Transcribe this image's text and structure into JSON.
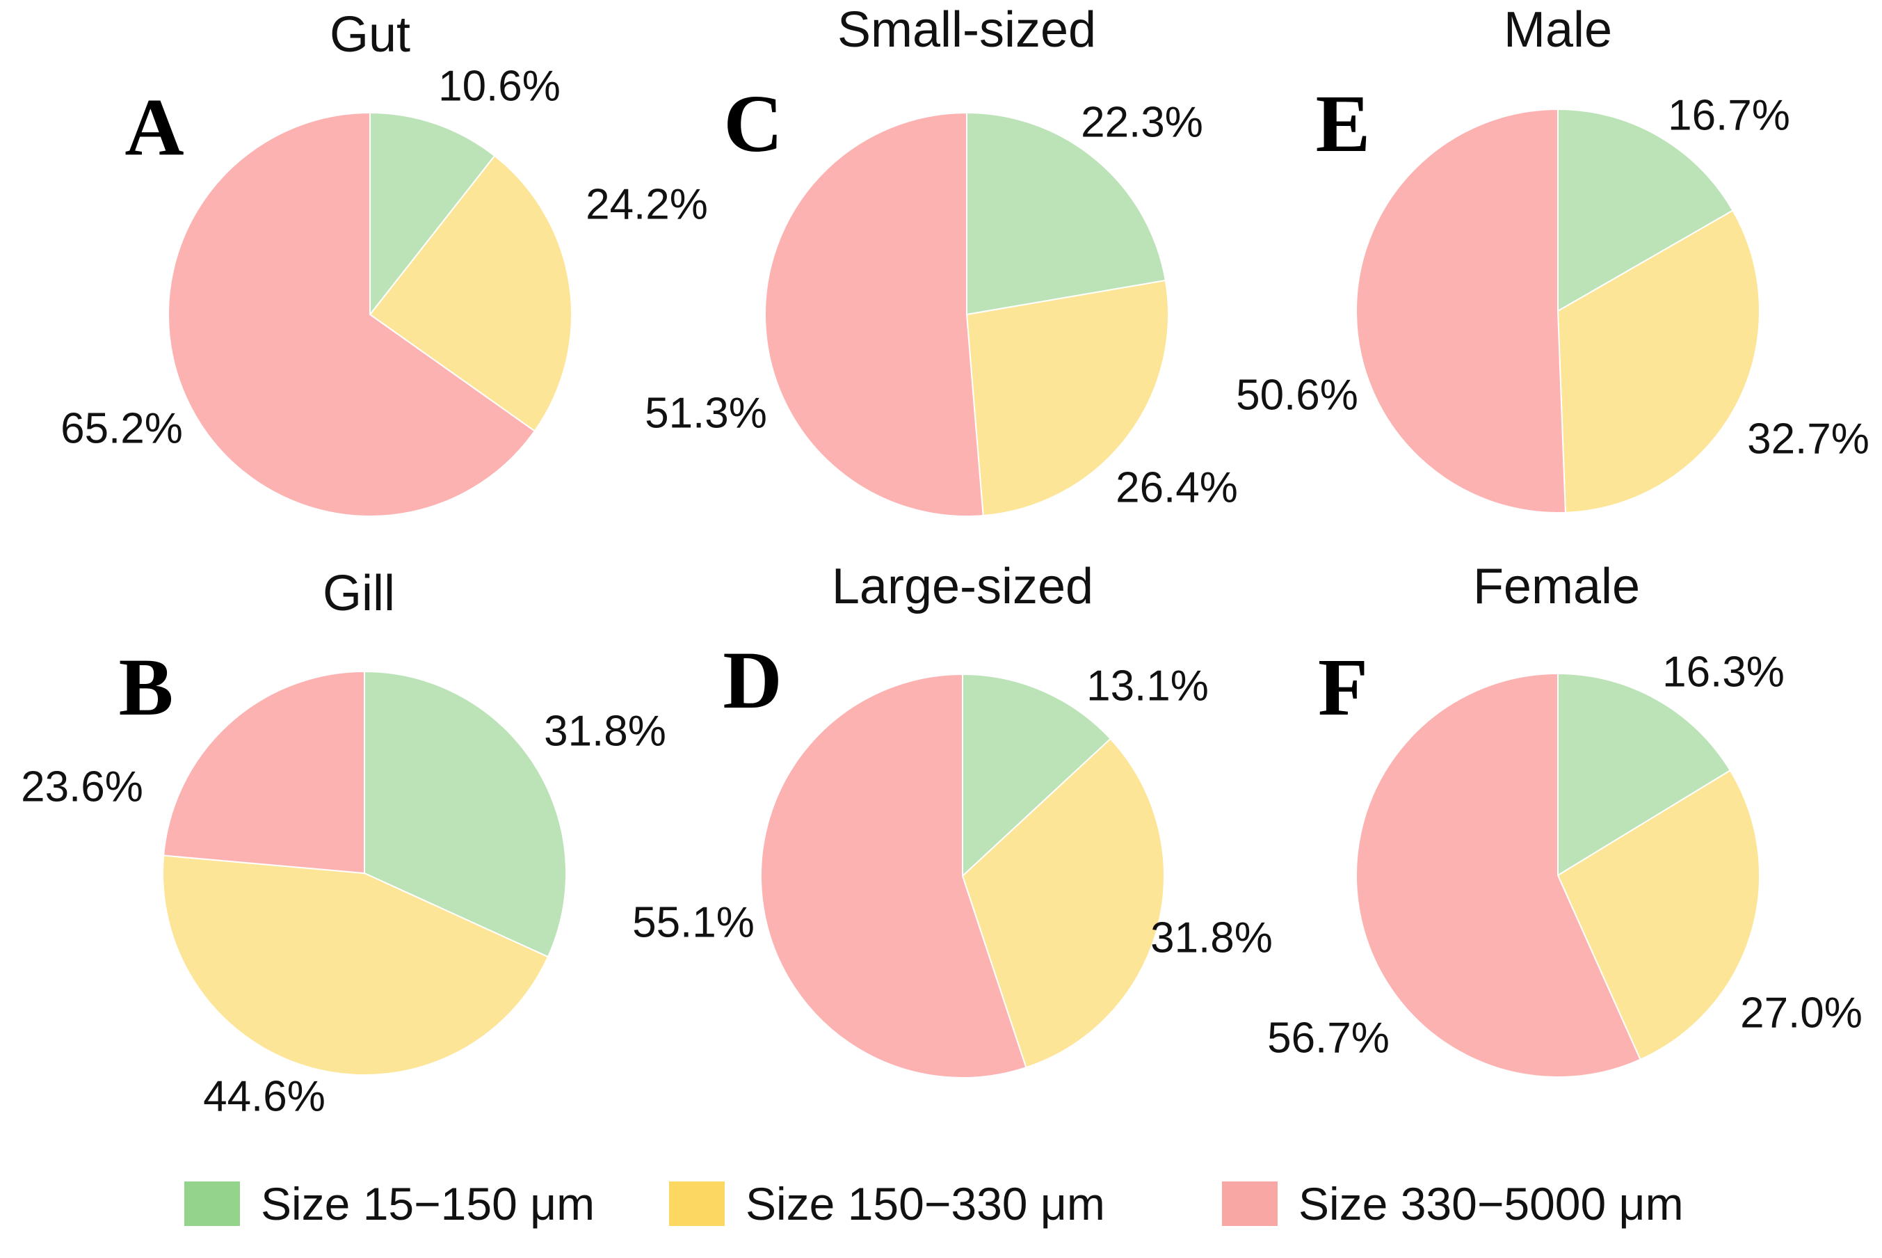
{
  "chart_data": [
    {
      "type": "pie",
      "panel": "A",
      "title": "Gut",
      "labels": [
        "Size 15−150 μm",
        "Size 150−330 μm",
        "Size 330−5000 μm"
      ],
      "values": [
        10.6,
        24.2,
        65.2
      ],
      "value_labels": [
        "10.6%",
        "24.2%",
        "65.2%"
      ]
    },
    {
      "type": "pie",
      "panel": "B",
      "title": "Gill",
      "labels": [
        "Size 15−150 μm",
        "Size 150−330 μm",
        "Size 330−5000 μm"
      ],
      "values": [
        31.8,
        44.6,
        23.6
      ],
      "value_labels": [
        "31.8%",
        "44.6%",
        "23.6%"
      ]
    },
    {
      "type": "pie",
      "panel": "C",
      "title": "Small-sized",
      "labels": [
        "Size 15−150 μm",
        "Size 150−330 μm",
        "Size 330−5000 μm"
      ],
      "values": [
        22.3,
        26.4,
        51.3
      ],
      "value_labels": [
        "22.3%",
        "26.4%",
        "51.3%"
      ]
    },
    {
      "type": "pie",
      "panel": "D",
      "title": "Large-sized",
      "labels": [
        "Size 15−150 μm",
        "Size 150−330 μm",
        "Size 330−5000 μm"
      ],
      "values": [
        13.1,
        31.8,
        55.1
      ],
      "value_labels": [
        "13.1%",
        "31.8%",
        "55.1%"
      ]
    },
    {
      "type": "pie",
      "panel": "E",
      "title": "Male",
      "labels": [
        "Size 15−150 μm",
        "Size 150−330 μm",
        "Size 330−5000 μm"
      ],
      "values": [
        16.7,
        32.7,
        50.6
      ],
      "value_labels": [
        "16.7%",
        "32.7%",
        "50.6%"
      ]
    },
    {
      "type": "pie",
      "panel": "F",
      "title": "Female",
      "labels": [
        "Size 15−150 μm",
        "Size 150−330 μm",
        "Size 330−5000 μm"
      ],
      "values": [
        16.3,
        27.0,
        56.7
      ],
      "value_labels": [
        "16.3%",
        "27.0%",
        "56.7%"
      ]
    }
  ],
  "legend": {
    "items": [
      {
        "label": "Size 15−150 μm",
        "color": "#93d38c",
        "slice_color": "#bce3b7"
      },
      {
        "label": "Size 150−330 μm",
        "color": "#fcd862",
        "slice_color": "#fde597"
      },
      {
        "label": "Size 330−5000 μm",
        "color": "#f9a7a5",
        "slice_color": "#fdb2b2"
      }
    ]
  }
}
